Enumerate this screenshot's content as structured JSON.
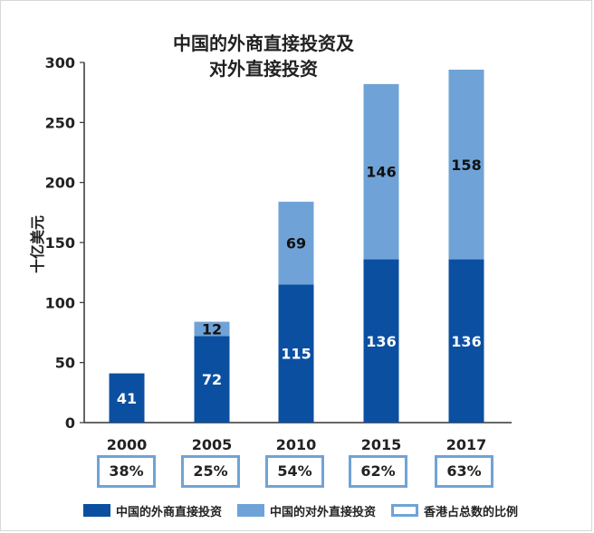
{
  "chart_data": {
    "type": "bar",
    "stacked": true,
    "title_lines": [
      "中国的外商直接投资及",
      "对外直接投资"
    ],
    "ylabel": "十亿美元",
    "ylim": [
      0,
      300
    ],
    "yticks": [
      0,
      50,
      100,
      150,
      200,
      250,
      300
    ],
    "categories": [
      "2000",
      "2005",
      "2010",
      "2015",
      "2017"
    ],
    "series": [
      {
        "name": "中国的外商直接投资",
        "values": [
          41,
          72,
          115,
          136,
          136
        ],
        "color": "#0b4fa0",
        "label_color": "#ffffff"
      },
      {
        "name": "中国的对外直接投资",
        "values": [
          null,
          12,
          69,
          146,
          158
        ],
        "color": "#6fa3d7",
        "label_color": "#111111"
      }
    ],
    "bar_totals": [
      41,
      84,
      184,
      282,
      294
    ],
    "ratio_series": {
      "name": "香港占总数的比例",
      "values": [
        "38%",
        "25%",
        "54%",
        "62%",
        "63%"
      ],
      "color": "#6fa3d7"
    },
    "grid": false,
    "legend_position": "bottom"
  }
}
